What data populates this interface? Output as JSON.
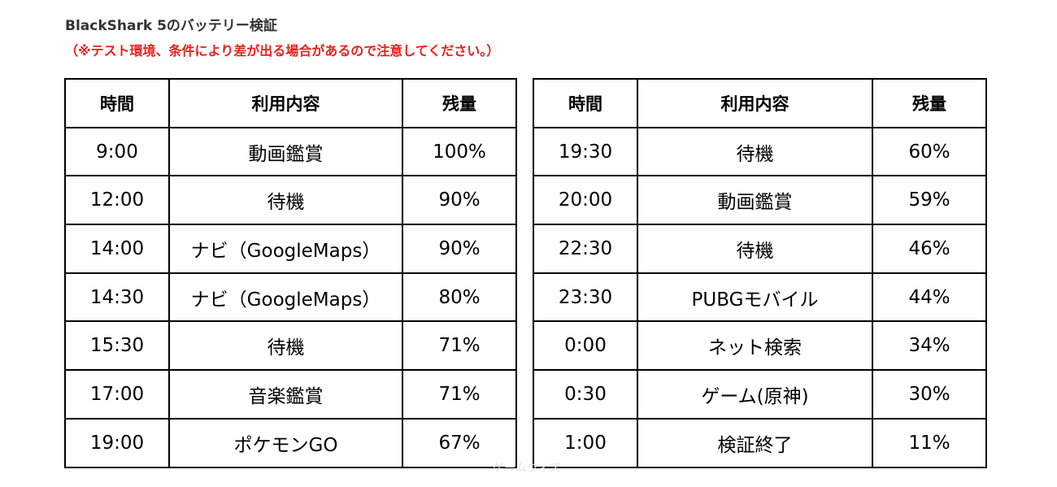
{
  "header": {
    "title": "BlackShark 5のバッテリー検証",
    "notice": "（※テスト環境、条件により差が出る場合があるので注意してください。）"
  },
  "columns": {
    "time": "時間",
    "usage": "利用内容",
    "remaining": "残量"
  },
  "tables": [
    {
      "rows": [
        {
          "time": "9:00",
          "usage": "動画鑑賞",
          "remaining": "100%"
        },
        {
          "time": "12:00",
          "usage": "待機",
          "remaining": "90%"
        },
        {
          "time": "14:00",
          "usage": "ナビ（GoogleMaps）",
          "remaining": "90%"
        },
        {
          "time": "14:30",
          "usage": "ナビ（GoogleMaps）",
          "remaining": "80%"
        },
        {
          "time": "15:30",
          "usage": "待機",
          "remaining": "71%"
        },
        {
          "time": "17:00",
          "usage": "音楽鑑賞",
          "remaining": "71%"
        },
        {
          "time": "19:00",
          "usage": "ポケモンGO",
          "remaining": "67%"
        }
      ]
    },
    {
      "rows": [
        {
          "time": "19:30",
          "usage": "待機",
          "remaining": "60%"
        },
        {
          "time": "20:00",
          "usage": "動画鑑賞",
          "remaining": "59%"
        },
        {
          "time": "22:30",
          "usage": "待機",
          "remaining": "46%"
        },
        {
          "time": "23:30",
          "usage": "PUBGモバイル",
          "remaining": "44%"
        },
        {
          "time": "0:00",
          "usage": "ネット検索",
          "remaining": "34%"
        },
        {
          "time": "0:30",
          "usage": "ゲーム(原神)",
          "remaining": "30%"
        },
        {
          "time": "1:00",
          "usage": "検証終了",
          "remaining": "11%"
        }
      ]
    }
  ],
  "watermark": "ゲームウィズ"
}
